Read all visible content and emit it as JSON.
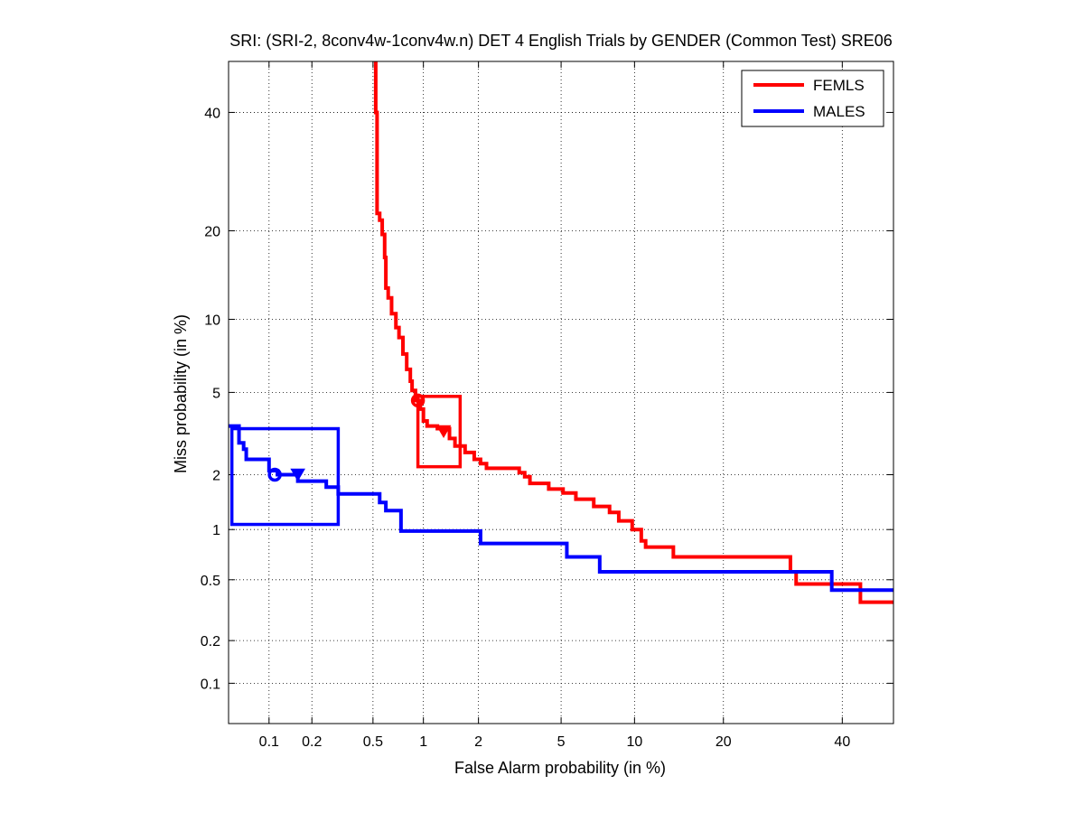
{
  "chart_data": {
    "type": "line",
    "title": "SRI: (SRI-2, 8conv4w-1conv4w.n) DET 4 English Trials by GENDER (Common Test) SRE06",
    "xlabel": "False Alarm probability (in %)",
    "ylabel": "Miss probability (in %)",
    "scale": "normal-deviate (probit) on both axes",
    "xlim": [
      0.05,
      50
    ],
    "ylim": [
      0.05,
      50
    ],
    "x_ticks": [
      0.1,
      0.2,
      0.5,
      1,
      2,
      5,
      10,
      20,
      40
    ],
    "x_tick_labels": [
      "0.1",
      "0.2",
      "0.5",
      "1",
      "2",
      "5",
      "10",
      "20",
      "40"
    ],
    "y_ticks": [
      0.1,
      0.2,
      0.5,
      1,
      2,
      5,
      10,
      20,
      40
    ],
    "y_tick_labels": [
      "0.1",
      "0.2",
      "0.5",
      "1",
      "2",
      "5",
      "10",
      "20",
      "40"
    ],
    "grid": true,
    "legend_position": "top-right",
    "series": [
      {
        "name": "FEMLS",
        "color": "#ff0000",
        "points": [
          [
            0.52,
            50
          ],
          [
            0.52,
            40
          ],
          [
            0.53,
            40
          ],
          [
            0.53,
            22.5
          ],
          [
            0.55,
            22.5
          ],
          [
            0.55,
            21.5
          ],
          [
            0.57,
            21.5
          ],
          [
            0.57,
            19.5
          ],
          [
            0.59,
            19.5
          ],
          [
            0.59,
            16.5
          ],
          [
            0.6,
            16.5
          ],
          [
            0.6,
            13
          ],
          [
            0.62,
            13
          ],
          [
            0.62,
            12
          ],
          [
            0.65,
            12
          ],
          [
            0.65,
            10.5
          ],
          [
            0.69,
            10.5
          ],
          [
            0.69,
            9.3
          ],
          [
            0.72,
            9.3
          ],
          [
            0.72,
            8.5
          ],
          [
            0.76,
            8.5
          ],
          [
            0.76,
            7.3
          ],
          [
            0.8,
            7.3
          ],
          [
            0.8,
            6.3
          ],
          [
            0.84,
            6.3
          ],
          [
            0.84,
            5.6
          ],
          [
            0.86,
            5.6
          ],
          [
            0.86,
            5.1
          ],
          [
            0.9,
            5.1
          ],
          [
            0.9,
            4.6
          ],
          [
            0.96,
            4.6
          ],
          [
            0.96,
            4.2
          ],
          [
            1.0,
            4.2
          ],
          [
            1.0,
            3.7
          ],
          [
            1.05,
            3.7
          ],
          [
            1.05,
            3.5
          ],
          [
            1.2,
            3.5
          ],
          [
            1.2,
            3.4
          ],
          [
            1.4,
            3.4
          ],
          [
            1.4,
            3.05
          ],
          [
            1.5,
            3.05
          ],
          [
            1.5,
            2.8
          ],
          [
            1.7,
            2.8
          ],
          [
            1.7,
            2.6
          ],
          [
            1.9,
            2.6
          ],
          [
            1.9,
            2.4
          ],
          [
            2.05,
            2.4
          ],
          [
            2.05,
            2.28
          ],
          [
            2.2,
            2.28
          ],
          [
            2.2,
            2.16
          ],
          [
            3.2,
            2.16
          ],
          [
            3.2,
            2.05
          ],
          [
            3.4,
            2.05
          ],
          [
            3.4,
            1.95
          ],
          [
            3.6,
            1.95
          ],
          [
            3.6,
            1.8
          ],
          [
            4.4,
            1.8
          ],
          [
            4.4,
            1.68
          ],
          [
            5.1,
            1.68
          ],
          [
            5.1,
            1.6
          ],
          [
            5.8,
            1.6
          ],
          [
            5.8,
            1.48
          ],
          [
            6.9,
            1.48
          ],
          [
            6.9,
            1.35
          ],
          [
            8.0,
            1.35
          ],
          [
            8.0,
            1.25
          ],
          [
            8.7,
            1.25
          ],
          [
            8.7,
            1.12
          ],
          [
            9.8,
            1.12
          ],
          [
            9.8,
            1.0
          ],
          [
            10.6,
            1.0
          ],
          [
            10.6,
            0.86
          ],
          [
            11,
            0.86
          ],
          [
            11,
            0.79
          ],
          [
            13.8,
            0.79
          ],
          [
            13.8,
            0.69
          ],
          [
            30.5,
            0.69
          ],
          [
            30.5,
            0.56
          ],
          [
            31.5,
            0.56
          ],
          [
            31.5,
            0.47
          ],
          [
            43.5,
            0.47
          ],
          [
            43.5,
            0.36
          ],
          [
            50,
            0.36
          ]
        ]
      },
      {
        "name": "MALES",
        "color": "#0000ff",
        "points": [
          [
            0.05,
            3.5
          ],
          [
            0.06,
            3.5
          ],
          [
            0.06,
            2.9
          ],
          [
            0.065,
            2.9
          ],
          [
            0.065,
            2.7
          ],
          [
            0.068,
            2.7
          ],
          [
            0.068,
            2.4
          ],
          [
            0.1,
            2.4
          ],
          [
            0.1,
            2.1
          ],
          [
            0.115,
            2.1
          ],
          [
            0.115,
            2.0
          ],
          [
            0.16,
            2.0
          ],
          [
            0.16,
            1.85
          ],
          [
            0.25,
            1.85
          ],
          [
            0.25,
            1.72
          ],
          [
            0.3,
            1.72
          ],
          [
            0.3,
            1.58
          ],
          [
            0.55,
            1.58
          ],
          [
            0.55,
            1.42
          ],
          [
            0.6,
            1.42
          ],
          [
            0.6,
            1.28
          ],
          [
            0.74,
            1.28
          ],
          [
            0.74,
            0.98
          ],
          [
            2.05,
            0.98
          ],
          [
            2.05,
            0.83
          ],
          [
            5.3,
            0.83
          ],
          [
            5.3,
            0.69
          ],
          [
            7.3,
            0.69
          ],
          [
            7.3,
            0.56
          ],
          [
            38,
            0.56
          ],
          [
            38,
            0.43
          ],
          [
            50,
            0.43
          ]
        ]
      }
    ],
    "markers": [
      {
        "series": "FEMLS",
        "shape": "circle",
        "x": 0.93,
        "y": 4.6
      },
      {
        "series": "FEMLS",
        "shape": "triangle-down",
        "x": 1.3,
        "y": 3.3
      },
      {
        "series": "MALES",
        "shape": "circle",
        "x": 0.11,
        "y": 2.0
      },
      {
        "series": "MALES",
        "shape": "triangle-down",
        "x": 0.16,
        "y": 2.0
      }
    ],
    "confidence_boxes": [
      {
        "series": "FEMLS",
        "x_range": [
          0.93,
          1.6
        ],
        "y_range": [
          2.2,
          4.8
        ]
      },
      {
        "series": "MALES",
        "x_range": [
          0.053,
          0.3
        ],
        "y_range": [
          1.07,
          3.4
        ]
      }
    ]
  }
}
